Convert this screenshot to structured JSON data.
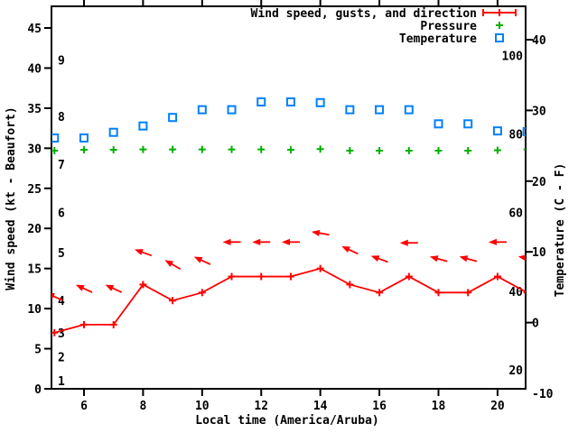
{
  "chart_data": {
    "type": "line",
    "title": "",
    "xlabel": "Local time (America/Aruba)",
    "ylabel": "Wind speed (kt - Beaufort)",
    "y2label": "Temperature (C - F)",
    "x_hours": [
      5,
      6,
      7,
      8,
      9,
      10,
      11,
      12,
      13,
      14,
      15,
      16,
      17,
      18,
      19,
      20,
      21
    ],
    "x_tick_labels": [
      6,
      8,
      10,
      12,
      14,
      16,
      18,
      20
    ],
    "kt_ticks": [
      0,
      5,
      10,
      15,
      20,
      25,
      30,
      35,
      40,
      45
    ],
    "kt_range": [
      0,
      45
    ],
    "celsius_ticks": [
      -10,
      0,
      10,
      20,
      30,
      40
    ],
    "celsius_range": [
      -10,
      40
    ],
    "fahrenheit_inner_labels": [
      20,
      40,
      60,
      80,
      100
    ],
    "beaufort_inner_labels": [
      [
        1,
        1
      ],
      [
        2,
        4
      ],
      [
        3,
        7
      ],
      [
        4,
        11
      ],
      [
        5,
        17
      ],
      [
        6,
        22
      ],
      [
        7,
        28
      ],
      [
        8,
        34
      ],
      [
        9,
        41
      ]
    ],
    "legend_position": "top-right-inside",
    "grid": false,
    "series": [
      {
        "name": "Wind speed, gusts, and direction",
        "color": "#ff0000",
        "marker": "plus",
        "line": true,
        "axis": "kt",
        "values": [
          7,
          8,
          8,
          13,
          11,
          12,
          14,
          14,
          14,
          15,
          13,
          12,
          14,
          12,
          12,
          14,
          12
        ]
      },
      {
        "name": "Pressure",
        "color": "#00b000",
        "marker": "plus",
        "line": false,
        "axis": "kt",
        "values": [
          29.7,
          29.8,
          29.8,
          29.85,
          29.85,
          29.85,
          29.85,
          29.85,
          29.8,
          29.9,
          29.7,
          29.7,
          29.7,
          29.7,
          29.7,
          29.75,
          29.85
        ]
      },
      {
        "name": "Temperature",
        "color": "#0080ff",
        "marker": "square",
        "line": false,
        "axis": "celsius",
        "values": [
          26.1,
          26.1,
          26.9,
          27.8,
          29.0,
          30.1,
          30.1,
          31.2,
          31.2,
          31.1,
          30.1,
          30.1,
          30.1,
          28.1,
          28.1,
          27.1,
          27.0
        ]
      }
    ],
    "gusts": {
      "color": "#ff0000",
      "values_kt": [
        11.5,
        12.5,
        12.5,
        17,
        15.5,
        16,
        18.3,
        18.3,
        18.3,
        19.4,
        17.3,
        16.2,
        18.2,
        16.2,
        16.2,
        18.3,
        16.3
      ],
      "arrow_tilt_deg": [
        25,
        25,
        25,
        20,
        30,
        25,
        0,
        0,
        0,
        10,
        25,
        20,
        0,
        15,
        15,
        0,
        10
      ],
      "arrow_points_toward": "west (wind from east)"
    }
  },
  "colors": {
    "wind": "#ff0000",
    "pressure": "#00b000",
    "temperature": "#0080ff",
    "axis": "#000000",
    "background": "#ffffff"
  }
}
